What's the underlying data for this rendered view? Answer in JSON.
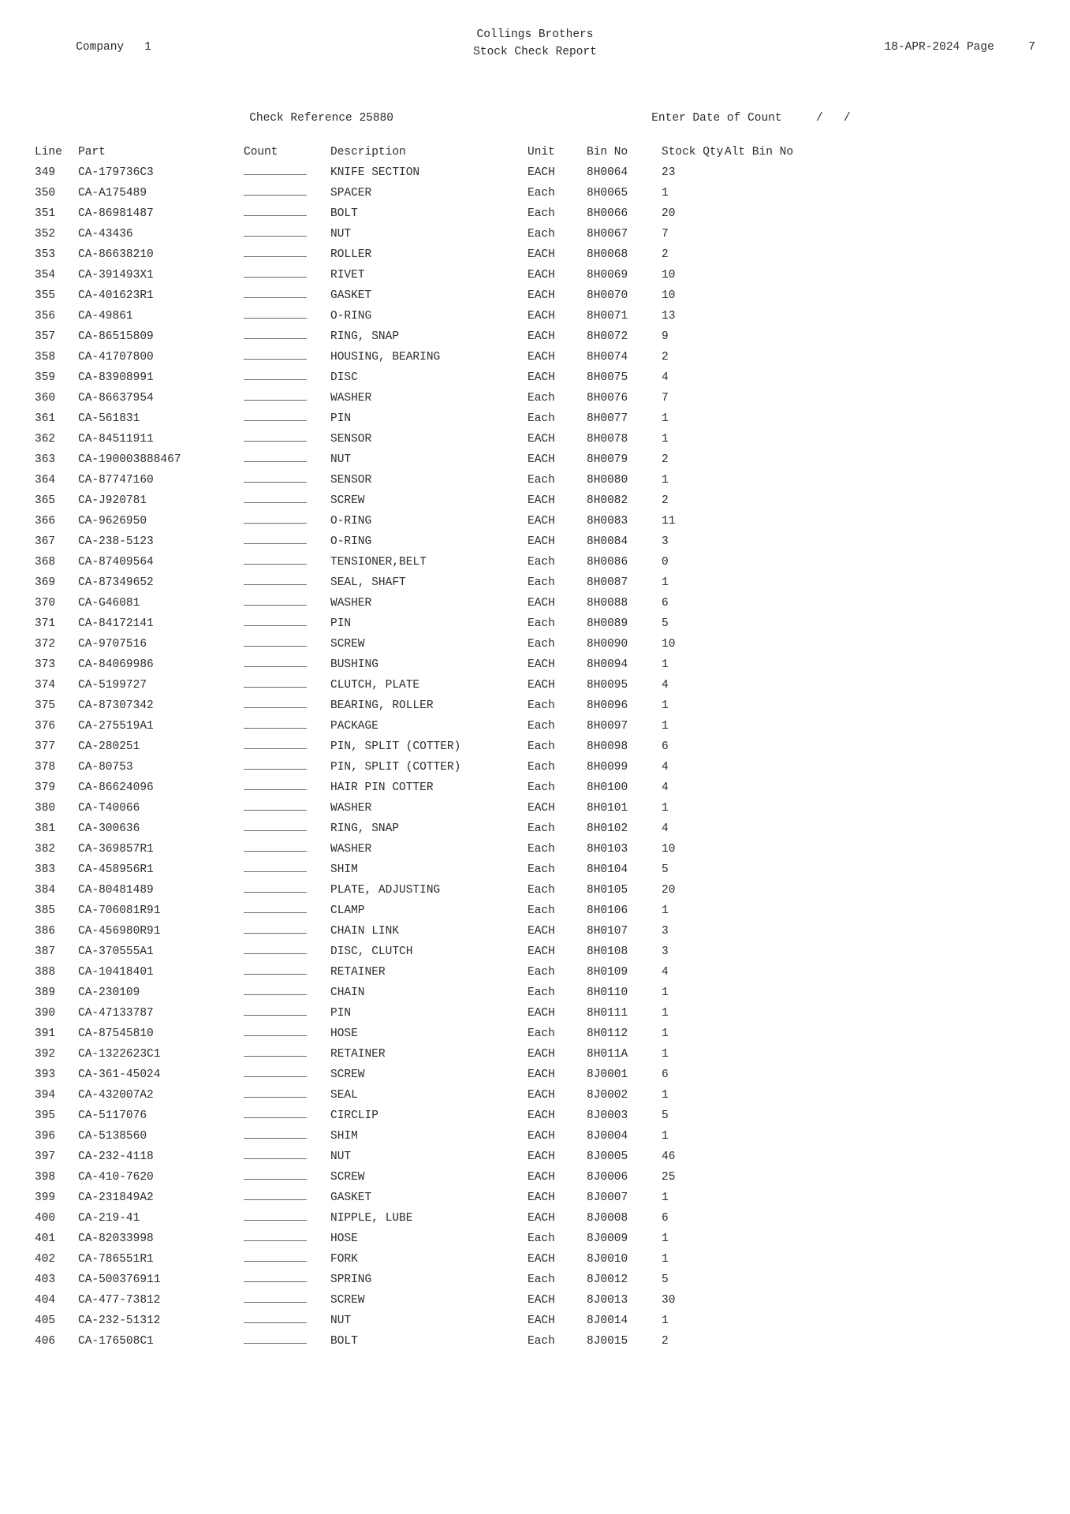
{
  "header": {
    "company_label": "Company",
    "company_no": "1",
    "title_a": "Collings Brothers",
    "title_b": "Stock Check Report",
    "date": "18-APR-2024",
    "page_label": "Page",
    "page_no": "7"
  },
  "subheader": {
    "ref_label": "Check Reference",
    "ref_no": "25880",
    "date_label": "Enter Date of Count",
    "date_value": "  /   /"
  },
  "columns": {
    "line": "Line",
    "part": "Part",
    "count": "Count",
    "desc": "Description",
    "unit": "Unit",
    "bin": "Bin No",
    "qty": "Stock Qty",
    "alt": "Alt Bin No"
  },
  "rows": [
    {
      "line": "349",
      "part": "CA-179736C3",
      "desc": "KNIFE SECTION",
      "unit": "EACH",
      "bin": "8H0064",
      "qty": "23"
    },
    {
      "line": "350",
      "part": "CA-A175489",
      "desc": "SPACER",
      "unit": "Each",
      "bin": "8H0065",
      "qty": "1"
    },
    {
      "line": "351",
      "part": "CA-86981487",
      "desc": "BOLT",
      "unit": "Each",
      "bin": "8H0066",
      "qty": "20"
    },
    {
      "line": "352",
      "part": "CA-43436",
      "desc": "NUT",
      "unit": "Each",
      "bin": "8H0067",
      "qty": "7"
    },
    {
      "line": "353",
      "part": "CA-86638210",
      "desc": "ROLLER",
      "unit": "EACH",
      "bin": "8H0068",
      "qty": "2"
    },
    {
      "line": "354",
      "part": "CA-391493X1",
      "desc": "RIVET",
      "unit": "EACH",
      "bin": "8H0069",
      "qty": "10"
    },
    {
      "line": "355",
      "part": "CA-401623R1",
      "desc": "GASKET",
      "unit": "EACH",
      "bin": "8H0070",
      "qty": "10"
    },
    {
      "line": "356",
      "part": "CA-49861",
      "desc": "O-RING",
      "unit": "EACH",
      "bin": "8H0071",
      "qty": "13"
    },
    {
      "line": "357",
      "part": "CA-86515809",
      "desc": "RING, SNAP",
      "unit": "EACH",
      "bin": "8H0072",
      "qty": "9"
    },
    {
      "line": "358",
      "part": "CA-41707800",
      "desc": "HOUSING, BEARING",
      "unit": "EACH",
      "bin": "8H0074",
      "qty": "2"
    },
    {
      "line": "359",
      "part": "CA-83908991",
      "desc": "DISC",
      "unit": "EACH",
      "bin": "8H0075",
      "qty": "4"
    },
    {
      "line": "360",
      "part": "CA-86637954",
      "desc": "WASHER",
      "unit": "Each",
      "bin": "8H0076",
      "qty": "7"
    },
    {
      "line": "361",
      "part": "CA-561831",
      "desc": "PIN",
      "unit": "Each",
      "bin": "8H0077",
      "qty": "1"
    },
    {
      "line": "362",
      "part": "CA-84511911",
      "desc": "SENSOR",
      "unit": "EACH",
      "bin": "8H0078",
      "qty": "1"
    },
    {
      "line": "363",
      "part": "CA-190003888467",
      "desc": "NUT",
      "unit": "EACH",
      "bin": "8H0079",
      "qty": "2"
    },
    {
      "line": "364",
      "part": "CA-87747160",
      "desc": "SENSOR",
      "unit": "Each",
      "bin": "8H0080",
      "qty": "1"
    },
    {
      "line": "365",
      "part": "CA-J920781",
      "desc": "SCREW",
      "unit": "EACH",
      "bin": "8H0082",
      "qty": "2"
    },
    {
      "line": "366",
      "part": "CA-9626950",
      "desc": "O-RING",
      "unit": "EACH",
      "bin": "8H0083",
      "qty": "11"
    },
    {
      "line": "367",
      "part": "CA-238-5123",
      "desc": "O-RING",
      "unit": "EACH",
      "bin": "8H0084",
      "qty": "3"
    },
    {
      "line": "368",
      "part": "CA-87409564",
      "desc": "TENSIONER,BELT",
      "unit": "Each",
      "bin": "8H0086",
      "qty": "0"
    },
    {
      "line": "369",
      "part": "CA-87349652",
      "desc": "SEAL, SHAFT",
      "unit": "Each",
      "bin": "8H0087",
      "qty": "1"
    },
    {
      "line": "370",
      "part": "CA-G46081",
      "desc": "WASHER",
      "unit": "EACH",
      "bin": "8H0088",
      "qty": "6"
    },
    {
      "line": "371",
      "part": "CA-84172141",
      "desc": "PIN",
      "unit": "Each",
      "bin": "8H0089",
      "qty": "5"
    },
    {
      "line": "372",
      "part": "CA-9707516",
      "desc": "SCREW",
      "unit": "Each",
      "bin": "8H0090",
      "qty": "10"
    },
    {
      "line": "373",
      "part": "CA-84069986",
      "desc": "BUSHING",
      "unit": "EACH",
      "bin": "8H0094",
      "qty": "1"
    },
    {
      "line": "374",
      "part": "CA-5199727",
      "desc": "CLUTCH, PLATE",
      "unit": "EACH",
      "bin": "8H0095",
      "qty": "4"
    },
    {
      "line": "375",
      "part": "CA-87307342",
      "desc": "BEARING, ROLLER",
      "unit": "Each",
      "bin": "8H0096",
      "qty": "1"
    },
    {
      "line": "376",
      "part": "CA-275519A1",
      "desc": "PACKAGE",
      "unit": "Each",
      "bin": "8H0097",
      "qty": "1"
    },
    {
      "line": "377",
      "part": "CA-280251",
      "desc": "PIN, SPLIT (COTTER)",
      "unit": "Each",
      "bin": "8H0098",
      "qty": "6"
    },
    {
      "line": "378",
      "part": "CA-80753",
      "desc": "PIN, SPLIT (COTTER)",
      "unit": "Each",
      "bin": "8H0099",
      "qty": "4"
    },
    {
      "line": "379",
      "part": "CA-86624096",
      "desc": "HAIR PIN COTTER",
      "unit": "Each",
      "bin": "8H0100",
      "qty": "4"
    },
    {
      "line": "380",
      "part": "CA-T40066",
      "desc": "WASHER",
      "unit": "EACH",
      "bin": "8H0101",
      "qty": "1"
    },
    {
      "line": "381",
      "part": "CA-300636",
      "desc": "RING, SNAP",
      "unit": "Each",
      "bin": "8H0102",
      "qty": "4"
    },
    {
      "line": "382",
      "part": "CA-369857R1",
      "desc": "WASHER",
      "unit": "Each",
      "bin": "8H0103",
      "qty": "10"
    },
    {
      "line": "383",
      "part": "CA-458956R1",
      "desc": "SHIM",
      "unit": "Each",
      "bin": "8H0104",
      "qty": "5"
    },
    {
      "line": "384",
      "part": "CA-80481489",
      "desc": "PLATE, ADJUSTING",
      "unit": "Each",
      "bin": "8H0105",
      "qty": "20"
    },
    {
      "line": "385",
      "part": "CA-706081R91",
      "desc": "CLAMP",
      "unit": "Each",
      "bin": "8H0106",
      "qty": "1"
    },
    {
      "line": "386",
      "part": "CA-456980R91",
      "desc": "CHAIN LINK",
      "unit": "EACH",
      "bin": "8H0107",
      "qty": "3"
    },
    {
      "line": "387",
      "part": "CA-370555A1",
      "desc": "DISC, CLUTCH",
      "unit": "EACH",
      "bin": "8H0108",
      "qty": "3"
    },
    {
      "line": "388",
      "part": "CA-10418401",
      "desc": "RETAINER",
      "unit": "Each",
      "bin": "8H0109",
      "qty": "4"
    },
    {
      "line": "389",
      "part": "CA-230109",
      "desc": "CHAIN",
      "unit": "Each",
      "bin": "8H0110",
      "qty": "1"
    },
    {
      "line": "390",
      "part": "CA-47133787",
      "desc": "PIN",
      "unit": "EACH",
      "bin": "8H0111",
      "qty": "1"
    },
    {
      "line": "391",
      "part": "CA-87545810",
      "desc": "HOSE",
      "unit": "Each",
      "bin": "8H0112",
      "qty": "1"
    },
    {
      "line": "392",
      "part": "CA-1322623C1",
      "desc": "RETAINER",
      "unit": "EACH",
      "bin": "8H011A",
      "qty": "1"
    },
    {
      "line": "393",
      "part": "CA-361-45024",
      "desc": "SCREW",
      "unit": "EACH",
      "bin": "8J0001",
      "qty": "6"
    },
    {
      "line": "394",
      "part": "CA-432007A2",
      "desc": "SEAL",
      "unit": "EACH",
      "bin": "8J0002",
      "qty": "1"
    },
    {
      "line": "395",
      "part": "CA-5117076",
      "desc": "CIRCLIP",
      "unit": "EACH",
      "bin": "8J0003",
      "qty": "5"
    },
    {
      "line": "396",
      "part": "CA-5138560",
      "desc": "SHIM",
      "unit": "EACH",
      "bin": "8J0004",
      "qty": "1"
    },
    {
      "line": "397",
      "part": "CA-232-4118",
      "desc": "NUT",
      "unit": "EACH",
      "bin": "8J0005",
      "qty": "46"
    },
    {
      "line": "398",
      "part": "CA-410-7620",
      "desc": "SCREW",
      "unit": "EACH",
      "bin": "8J0006",
      "qty": "25"
    },
    {
      "line": "399",
      "part": "CA-231849A2",
      "desc": "GASKET",
      "unit": "EACH",
      "bin": "8J0007",
      "qty": "1"
    },
    {
      "line": "400",
      "part": "CA-219-41",
      "desc": "NIPPLE, LUBE",
      "unit": "EACH",
      "bin": "8J0008",
      "qty": "6"
    },
    {
      "line": "401",
      "part": "CA-82033998",
      "desc": "HOSE",
      "unit": "Each",
      "bin": "8J0009",
      "qty": "1"
    },
    {
      "line": "402",
      "part": "CA-786551R1",
      "desc": "FORK",
      "unit": "EACH",
      "bin": "8J0010",
      "qty": "1"
    },
    {
      "line": "403",
      "part": "CA-500376911",
      "desc": "SPRING",
      "unit": "Each",
      "bin": "8J0012",
      "qty": "5"
    },
    {
      "line": "404",
      "part": "CA-477-73812",
      "desc": "SCREW",
      "unit": "EACH",
      "bin": "8J0013",
      "qty": "30"
    },
    {
      "line": "405",
      "part": "CA-232-51312",
      "desc": "NUT",
      "unit": "EACH",
      "bin": "8J0014",
      "qty": "1"
    },
    {
      "line": "406",
      "part": "CA-176508C1",
      "desc": "BOLT",
      "unit": "Each",
      "bin": "8J0015",
      "qty": "2"
    }
  ]
}
